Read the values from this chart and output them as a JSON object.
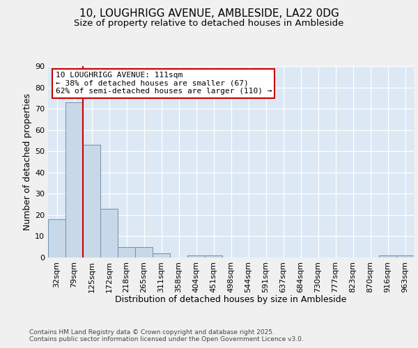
{
  "title1": "10, LOUGHRIGG AVENUE, AMBLESIDE, LA22 0DG",
  "title2": "Size of property relative to detached houses in Ambleside",
  "xlabel": "Distribution of detached houses by size in Ambleside",
  "ylabel": "Number of detached properties",
  "categories": [
    "32sqm",
    "79sqm",
    "125sqm",
    "172sqm",
    "218sqm",
    "265sqm",
    "311sqm",
    "358sqm",
    "404sqm",
    "451sqm",
    "498sqm",
    "544sqm",
    "591sqm",
    "637sqm",
    "684sqm",
    "730sqm",
    "777sqm",
    "823sqm",
    "870sqm",
    "916sqm",
    "963sqm"
  ],
  "values": [
    18,
    73,
    53,
    23,
    5,
    5,
    2,
    0,
    1,
    1,
    0,
    0,
    0,
    0,
    0,
    0,
    0,
    0,
    0,
    1,
    1
  ],
  "bar_color": "#c8d8e8",
  "bar_edge_color": "#7090b0",
  "highlight_color": "#cc0000",
  "annotation_text": "10 LOUGHRIGG AVENUE: 111sqm\n← 38% of detached houses are smaller (67)\n62% of semi-detached houses are larger (110) →",
  "annotation_box_color": "#ffffff",
  "annotation_box_edge": "#cc0000",
  "ylim": [
    0,
    90
  ],
  "yticks": [
    0,
    10,
    20,
    30,
    40,
    50,
    60,
    70,
    80,
    90
  ],
  "background_color": "#dce8f4",
  "plot_bg_color": "#dce8f4",
  "fig_bg_color": "#f0f0f0",
  "grid_color": "#ffffff",
  "footer_text": "Contains HM Land Registry data © Crown copyright and database right 2025.\nContains public sector information licensed under the Open Government Licence v3.0.",
  "title_fontsize": 11,
  "subtitle_fontsize": 9.5,
  "label_fontsize": 9,
  "tick_fontsize": 8
}
